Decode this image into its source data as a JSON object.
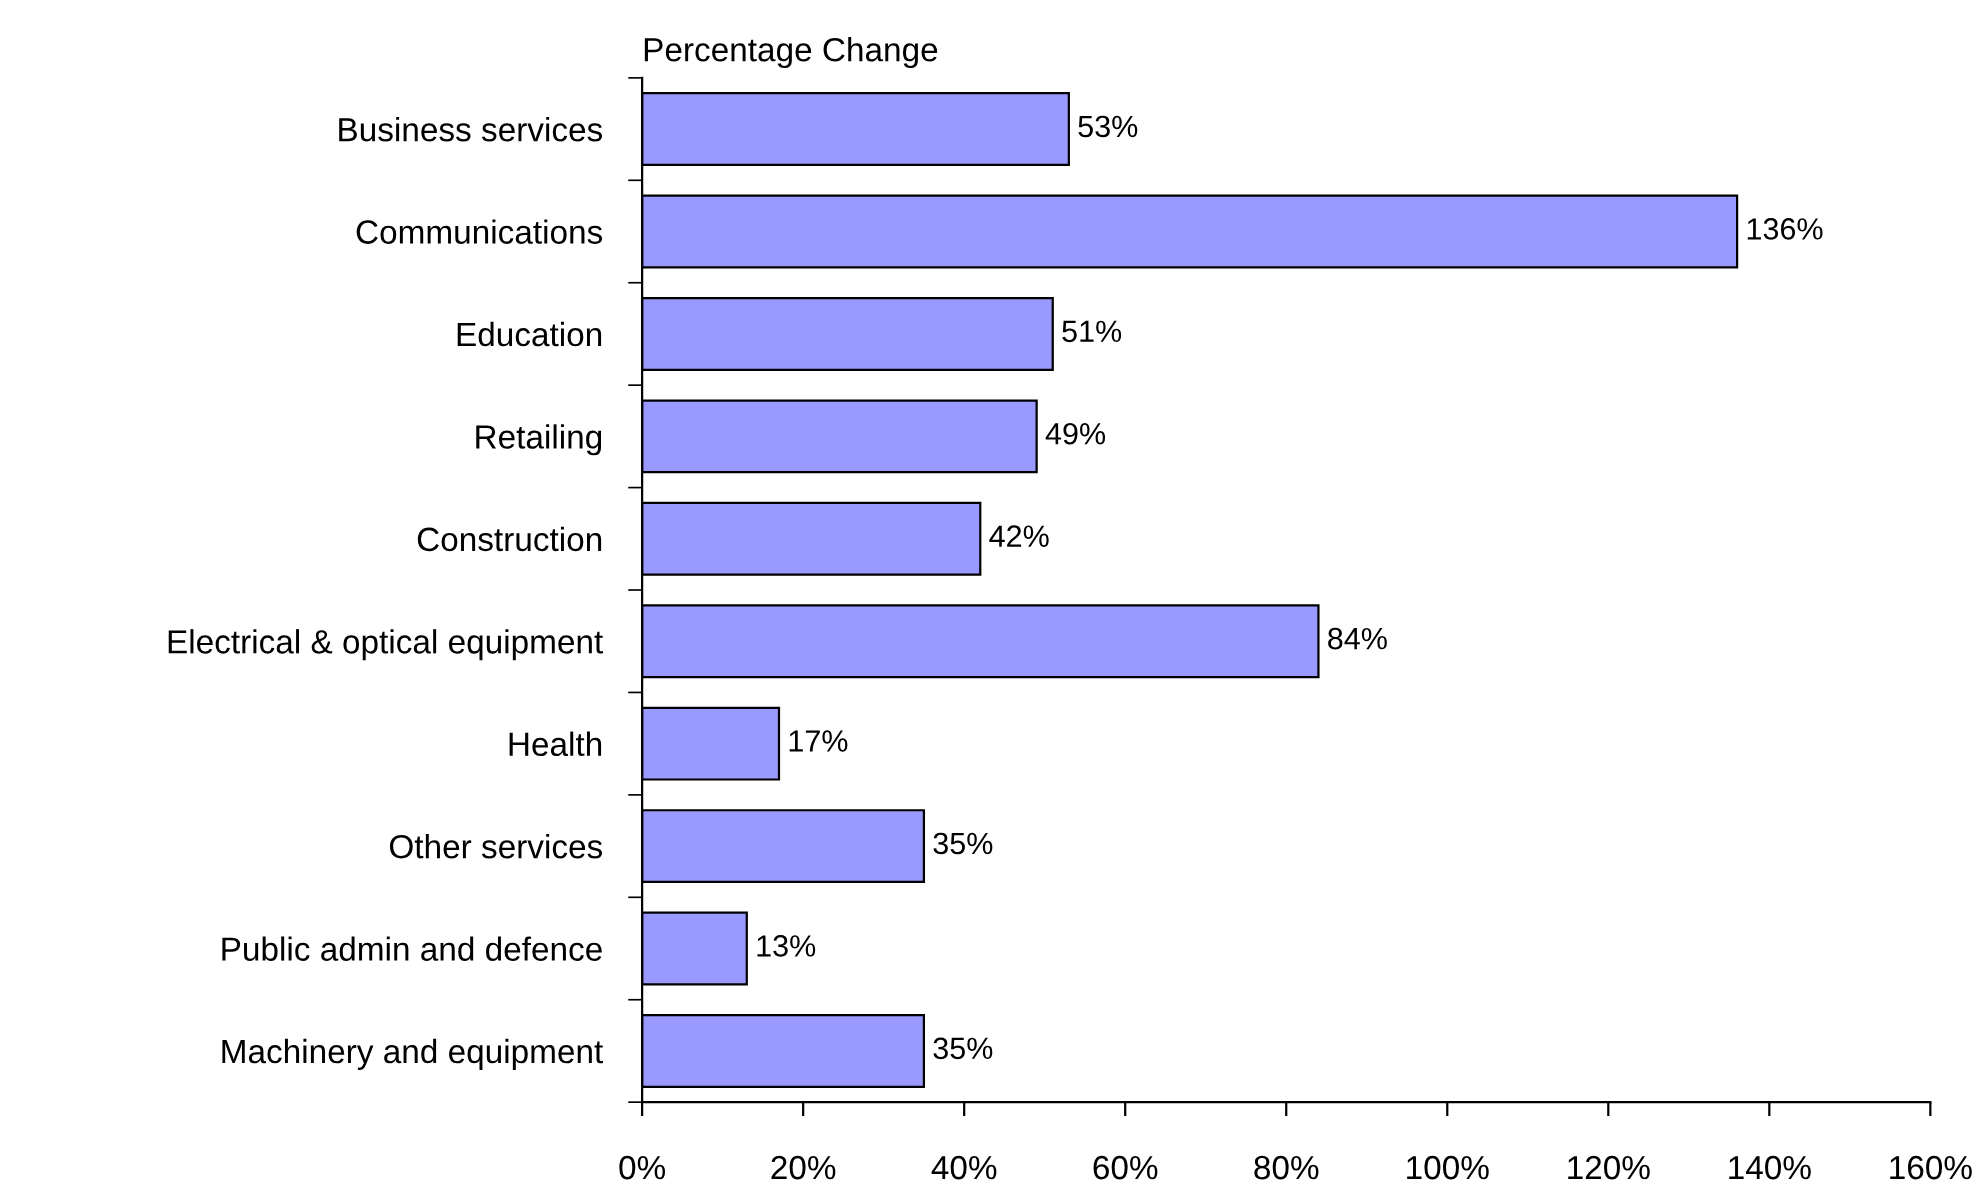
{
  "chart_data": {
    "type": "bar",
    "orientation": "horizontal",
    "title": "Percentage Change",
    "categories": [
      "Business services",
      "Communications",
      "Education",
      "Retailing",
      "Construction",
      "Electrical & optical equipment",
      "Health",
      "Other services",
      "Public admin and defence",
      "Machinery and equipment"
    ],
    "values": [
      53,
      136,
      51,
      49,
      42,
      84,
      17,
      35,
      13,
      35
    ],
    "value_labels": [
      "53%",
      "136%",
      "51%",
      "49%",
      "42%",
      "84%",
      "17%",
      "35%",
      "13%",
      "35%"
    ],
    "color": "#9999ff",
    "xlim": [
      0,
      160
    ],
    "xticks": [
      {
        "value": 0,
        "label": "0%"
      },
      {
        "value": 20,
        "label": "20%"
      },
      {
        "value": 40,
        "label": "40%"
      },
      {
        "value": 60,
        "label": "60%"
      },
      {
        "value": 80,
        "label": "80%"
      },
      {
        "value": 100,
        "label": "100%"
      },
      {
        "value": 120,
        "label": "120%"
      },
      {
        "value": 140,
        "label": "140%"
      },
      {
        "value": 160,
        "label": "160%"
      }
    ],
    "grid": false,
    "legend": false
  }
}
